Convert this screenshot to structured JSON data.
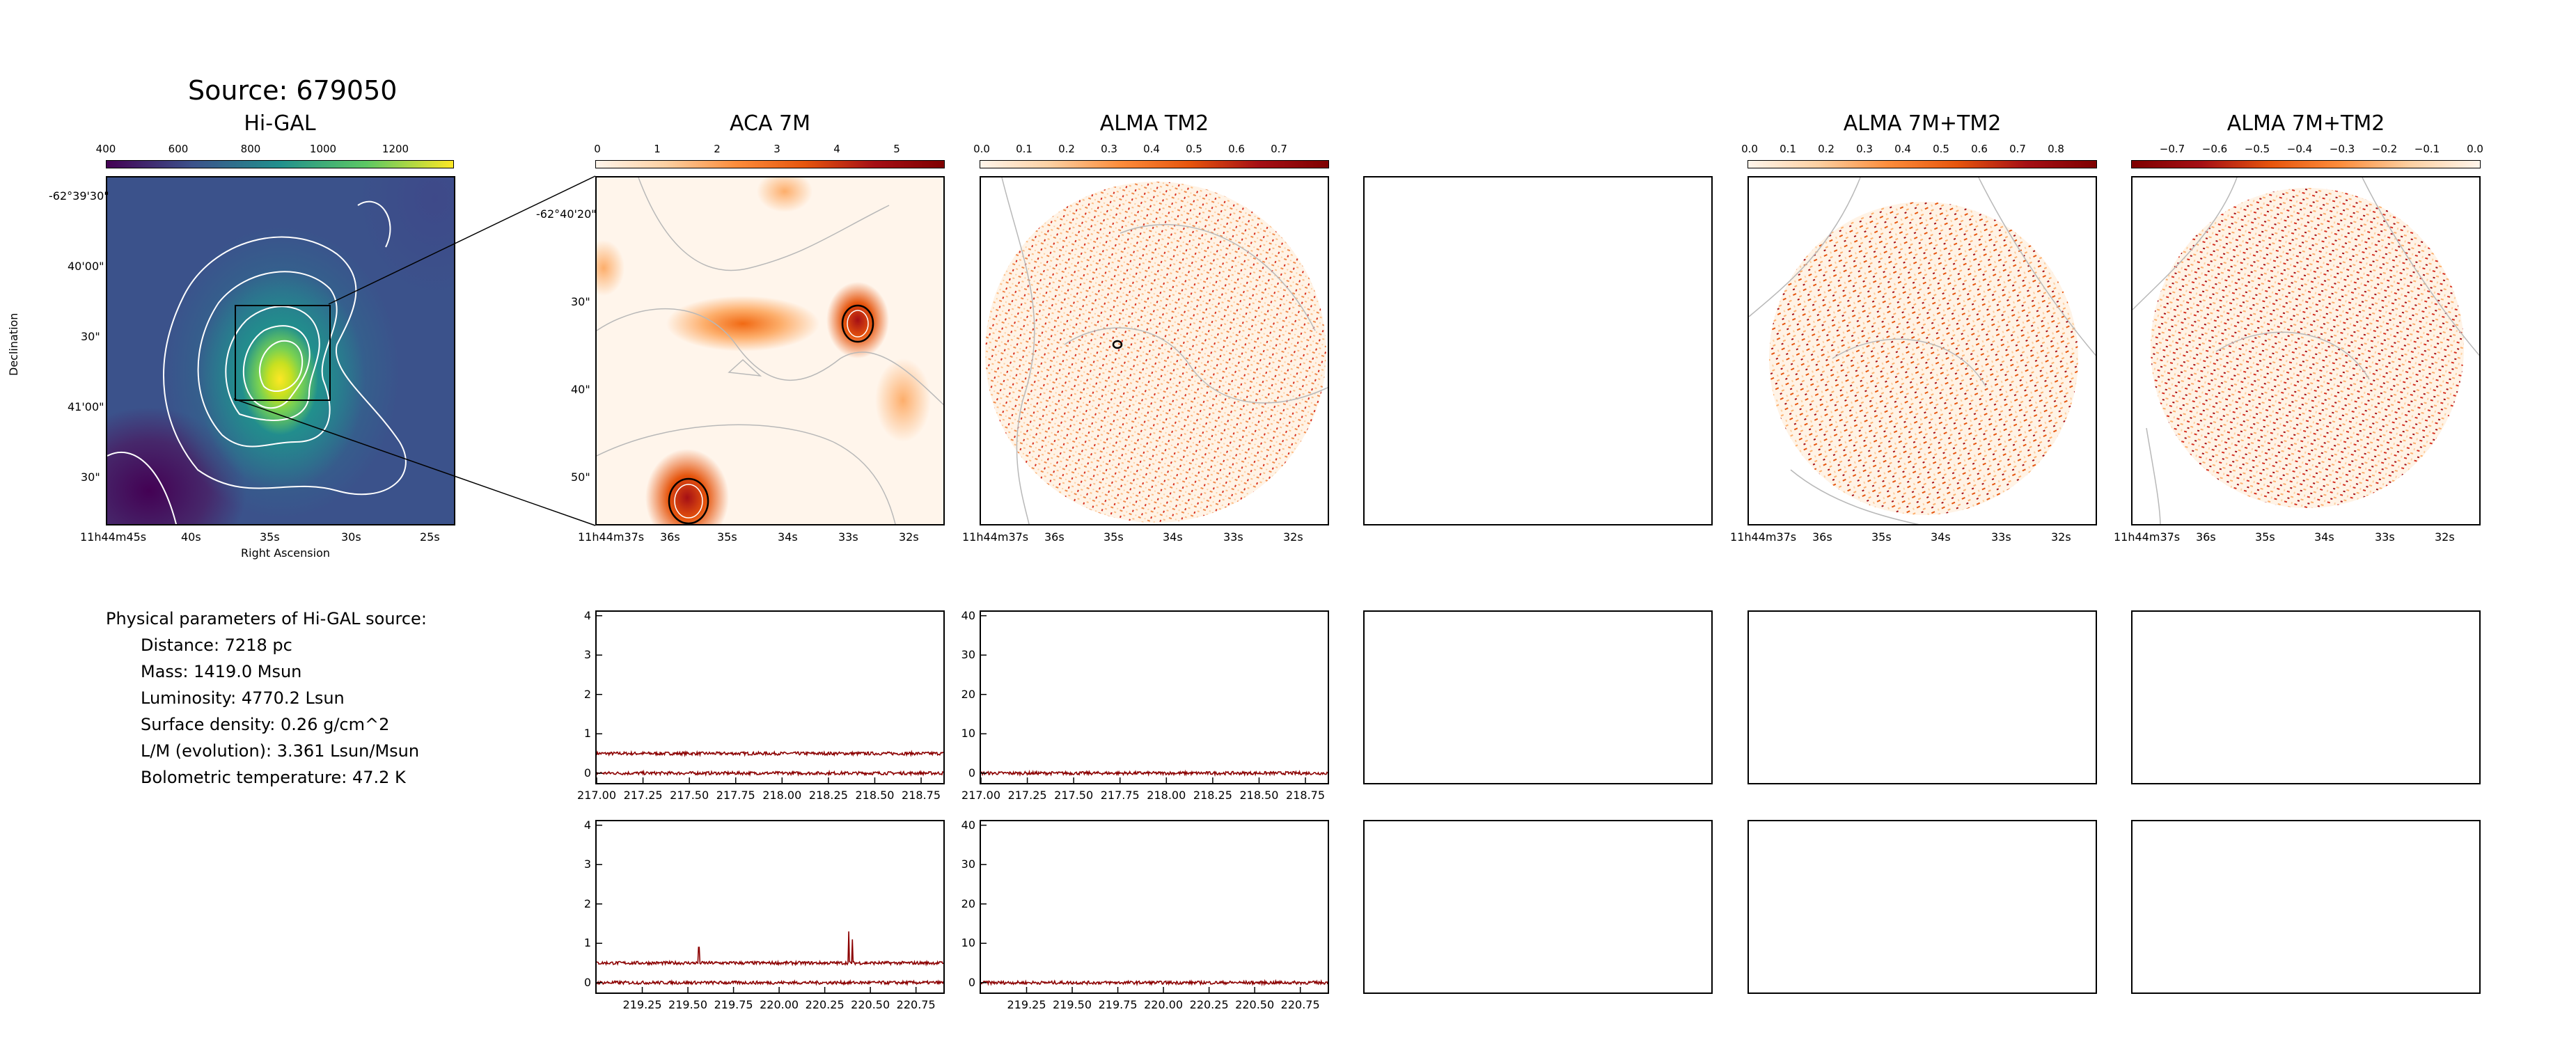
{
  "page": {
    "source_title": "Source: 679050"
  },
  "params": {
    "heading": "Physical parameters of Hi-GAL source:",
    "items": [
      "Distance: 7218 pc",
      "Mass: 1419.0 Msun",
      "Luminosity: 4770.2 Lsun",
      "Surface density: 0.26 g/cm^2",
      "L/M (evolution): 3.361 Lsun/Msun",
      "Bolometric temperature: 47.2 K"
    ]
  },
  "panels": {
    "higal": {
      "title": "Hi-GAL",
      "colorbar_ticks": [
        "400",
        "600",
        "800",
        "1000",
        "1200"
      ],
      "y_ticks": [
        "-62°39'30\"",
        "40'00\"",
        "30\"",
        "41'00\"",
        "30\""
      ],
      "x_ticks": [
        "11h44m45s",
        "40s",
        "35s",
        "30s",
        "25s"
      ],
      "xlabel": "Right Ascension",
      "ylabel": "Declination"
    },
    "aca": {
      "title": "ACA 7M",
      "colorbar_ticks": [
        "0",
        "1",
        "2",
        "3",
        "4",
        "5"
      ],
      "y_ticks": [
        "-62°40'20\"",
        "30\"",
        "40\"",
        "50\""
      ],
      "x_ticks": [
        "11h44m37s",
        "36s",
        "35s",
        "34s",
        "33s",
        "32s"
      ]
    },
    "tm2": {
      "title": "ALMA TM2",
      "colorbar_ticks": [
        "0.0",
        "0.1",
        "0.2",
        "0.3",
        "0.4",
        "0.5",
        "0.6",
        "0.7"
      ],
      "x_ticks": [
        "11h44m37s",
        "36s",
        "35s",
        "34s",
        "33s",
        "32s"
      ]
    },
    "combo1": {
      "title": "ALMA 7M+TM2",
      "colorbar_ticks": [
        "0.0",
        "0.1",
        "0.2",
        "0.3",
        "0.4",
        "0.5",
        "0.6",
        "0.7",
        "0.8"
      ],
      "x_ticks": [
        "11h44m37s",
        "36s",
        "35s",
        "34s",
        "33s",
        "32s"
      ]
    },
    "combo2": {
      "title": "ALMA 7M+TM2",
      "colorbar_ticks": [
        "−0.7",
        "−0.6",
        "−0.5",
        "−0.4",
        "−0.3",
        "−0.2",
        "−0.1",
        "0.0"
      ],
      "x_ticks": [
        "11h44m37s",
        "36s",
        "35s",
        "34s",
        "33s",
        "32s"
      ]
    }
  },
  "colors": {
    "spectrum": "#8b0000",
    "contour_white": "#ffffff",
    "contour_gray": "#b0b0b0"
  },
  "chart_data": [
    {
      "type": "line",
      "name_ref": "ACA 7M spectrum (upper)",
      "x_ticks": [
        "217.00",
        "217.25",
        "217.50",
        "217.75",
        "218.00",
        "218.25",
        "218.50",
        "218.75"
      ],
      "y_ticks": [
        "0",
        "1",
        "2",
        "3",
        "4"
      ],
      "xlim": [
        217.0,
        218.87
      ],
      "ylim": [
        -0.25,
        4.1
      ],
      "series": [
        {
          "values_level": 0.5,
          "noise": 0.04
        },
        {
          "values_level": 0.0,
          "noise": 0.04
        }
      ]
    },
    {
      "type": "line",
      "name_ref": "ALMA TM2 spectrum (upper)",
      "x_ticks": [
        "217.00",
        "217.25",
        "217.50",
        "217.75",
        "218.00",
        "218.25",
        "218.50",
        "218.75"
      ],
      "y_ticks": [
        "0",
        "10",
        "20",
        "30",
        "40"
      ],
      "xlim": [
        217.0,
        218.87
      ],
      "ylim": [
        -2.5,
        41
      ],
      "series": [
        {
          "values_level": 0.0,
          "noise": 0.4
        }
      ]
    },
    {
      "type": "line",
      "name_ref": "ACA 7M spectrum (lower)",
      "x_ticks": [
        "219.25",
        "219.50",
        "219.75",
        "220.00",
        "220.25",
        "220.50",
        "220.75"
      ],
      "y_ticks": [
        "0",
        "1",
        "2",
        "3",
        "4"
      ],
      "xlim": [
        219.0,
        220.9
      ],
      "ylim": [
        -0.25,
        4.1
      ],
      "series": [
        {
          "values_level": 0.5,
          "noise": 0.04,
          "peaks": [
            [
              219.56,
              0.9
            ],
            [
              220.38,
              1.3
            ],
            [
              220.4,
              1.1
            ]
          ]
        },
        {
          "values_level": 0.0,
          "noise": 0.04
        }
      ]
    },
    {
      "type": "line",
      "name_ref": "ALMA TM2 spectrum (lower)",
      "x_ticks": [
        "219.25",
        "219.50",
        "219.75",
        "220.00",
        "220.25",
        "220.50",
        "220.75"
      ],
      "y_ticks": [
        "0",
        "10",
        "20",
        "30",
        "40"
      ],
      "xlim": [
        219.0,
        220.9
      ],
      "ylim": [
        -2.5,
        41
      ],
      "series": [
        {
          "values_level": 0.0,
          "noise": 0.4
        }
      ]
    }
  ]
}
